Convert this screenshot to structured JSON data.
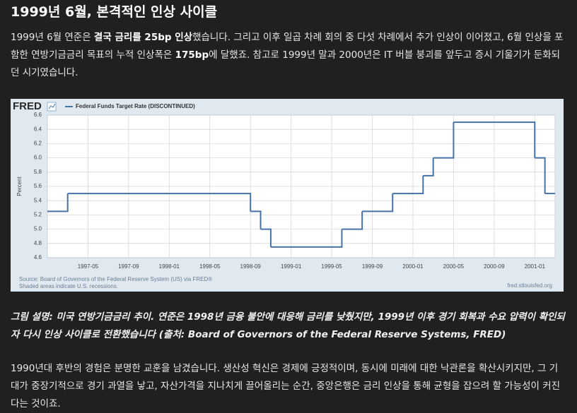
{
  "header": {
    "title": "1999년 6월, 본격적인 인상 사이클"
  },
  "paragraphs": [
    {
      "parts": [
        "1999년 6월 연준은 ",
        "결국 금리를 25bp 인상",
        "했습니다. 그리고 이후 일곱 차례 회의 중 다섯 차례에서 추가 인상이 이어졌고, 6월 인상을 포함한 연방기금금리 목표의 누적 인상폭은 ",
        "175bp",
        "에 달했죠. 참고로 1999년 말과 2000년은 IT 버블 붕괴를 앞두고 증시 기울기가 둔화되던 시기였습니다."
      ]
    },
    {
      "parts": [
        "1990년대 후반의 경험은 분명한 교훈을 남겼습니다. 생산성 혁신은 경제에 긍정적이며, 동시에 미래에 대한 낙관론을 확산시키지만, 그 기대가 중장기적으로 경기 과열을 낳고, 자산가격을 지나치게 끌어올리는 순간, 중앙은행은 금리 인상을 통해 균형을 잡으려 할 가능성이 커진다는 것이죠."
      ]
    }
  ],
  "caption": "그림 설명: 미국 연방기금금리 추이. 연준은 1998년 금융 불안에 대응해 금리를 낮췄지만, 1999년 이후 경기 회복과 수요 압력이 확인되자 다시 인상 사이클로 전환했습니다 (출처: Board of Governors of the Federal Reserve Systems, FRED)",
  "chart_data": {
    "type": "step",
    "logo": "FRED",
    "y_label": "Percent",
    "source": "Source: Board of Governors of the Federal Reserve System (US) via FRED®",
    "note": "Shaded areas indicate U.S. recessions.",
    "site": "fred.stlouisfed.org",
    "x": [
      "1997-01",
      "1997-03",
      "1998-09",
      "1998-10",
      "1998-11",
      "1999-06",
      "1999-08",
      "1999-11",
      "2000-02",
      "2000-03",
      "2000-05",
      "2001-01",
      "2001-02"
    ],
    "series": [
      {
        "name": "Federal Funds Target Rate (DISCONTINUED)",
        "color": "#4572a7",
        "values": [
          5.25,
          5.5,
          5.25,
          5.0,
          4.75,
          5.0,
          5.25,
          5.5,
          5.75,
          6.0,
          6.5,
          6.0,
          5.5
        ]
      }
    ],
    "xlim": [
      "1997-01",
      "2001-03"
    ],
    "xticks": [
      "1997-05",
      "1997-09",
      "1998-01",
      "1998-05",
      "1998-09",
      "1999-01",
      "1999-05",
      "1999-09",
      "2000-01",
      "2000-05",
      "2000-09",
      "2001-01"
    ],
    "ylim": [
      4.6,
      6.6
    ],
    "yticks": [
      4.6,
      4.8,
      {
        "value": 5,
        "label": "5.0"
      },
      5.2,
      5.4,
      5.6,
      5.8,
      {
        "value": 6,
        "label": "6.0"
      },
      6.2,
      6.4,
      6.6
    ],
    "grid": true
  }
}
